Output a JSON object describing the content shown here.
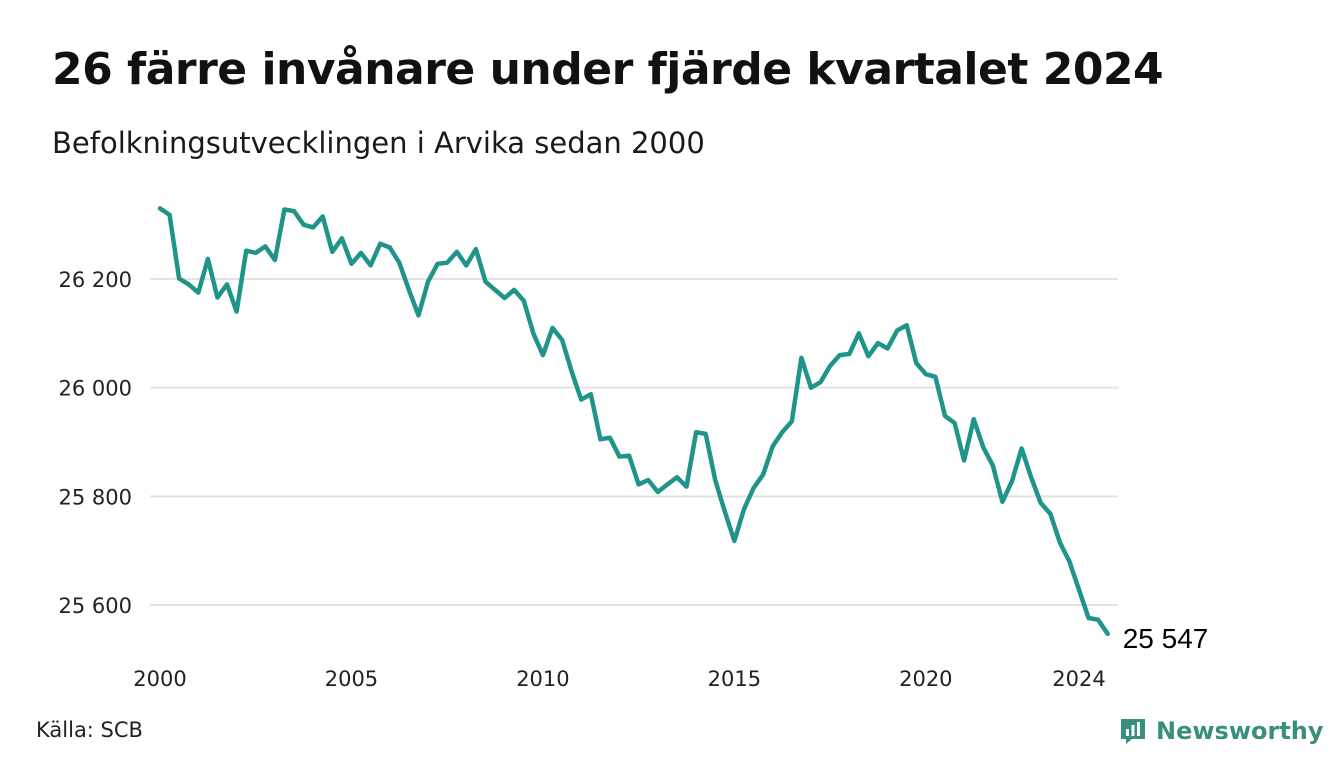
{
  "header": {
    "title": "26 färre invånare under fjärde kvartalet 2024",
    "subtitle": "Befolkningsutvecklingen i Arvika sedan 2000"
  },
  "footer": {
    "source": "Källa: SCB",
    "brand": "Newsworthy"
  },
  "colors": {
    "line": "#1f9488",
    "grid": "#e3e3e3",
    "brand": "#3a8f7c"
  },
  "chart_data": {
    "type": "line",
    "title": "26 färre invånare under fjärde kvartalet 2024",
    "subtitle": "Befolkningsutvecklingen i Arvika sedan 2000",
    "xlabel": "",
    "ylabel": "",
    "x_range": [
      2000,
      2024.75
    ],
    "ylim": [
      25547,
      26330
    ],
    "y_ticks": [
      25600,
      25800,
      26000,
      26200
    ],
    "y_tick_labels": [
      "25 600",
      "25 800",
      "26 000",
      "26 200"
    ],
    "x_ticks": [
      2000,
      2005,
      2010,
      2015,
      2020,
      2024
    ],
    "x_tick_labels": [
      "2000",
      "2005",
      "2010",
      "2015",
      "2020",
      "2024"
    ],
    "grid": true,
    "end_label": "25 547",
    "series": [
      {
        "x_start": 2000,
        "step": 0.25,
        "values": [
          26330,
          26318,
          26201,
          26190,
          26175,
          26237,
          26166,
          26190,
          26140,
          26252,
          26248,
          26260,
          26235,
          26328,
          26325,
          26300,
          26295,
          26315,
          26250,
          26275,
          26228,
          26248,
          26225,
          26265,
          26258,
          26230,
          26180,
          26133,
          26195,
          26228,
          26230,
          26250,
          26225,
          26255,
          26195,
          26180,
          26165,
          26180,
          26160,
          26100,
          26060,
          26110,
          26088,
          26030,
          25978,
          25988,
          25905,
          25908,
          25873,
          25875,
          25822,
          25830,
          25808,
          25822,
          25835,
          25818,
          25918,
          25915,
          25830,
          25772,
          25718,
          25776,
          25815,
          25840,
          25892,
          25918,
          25938,
          26055,
          26000,
          26010,
          26040,
          26060,
          26062,
          26100,
          26058,
          26082,
          26072,
          26105,
          26115,
          26045,
          26025,
          26020,
          25948,
          25935,
          25866,
          25942,
          25890,
          25857,
          25790,
          25828,
          25888,
          25835,
          25788,
          25768,
          25715,
          25680,
          25628,
          25576,
          25573,
          25547
        ]
      }
    ]
  }
}
